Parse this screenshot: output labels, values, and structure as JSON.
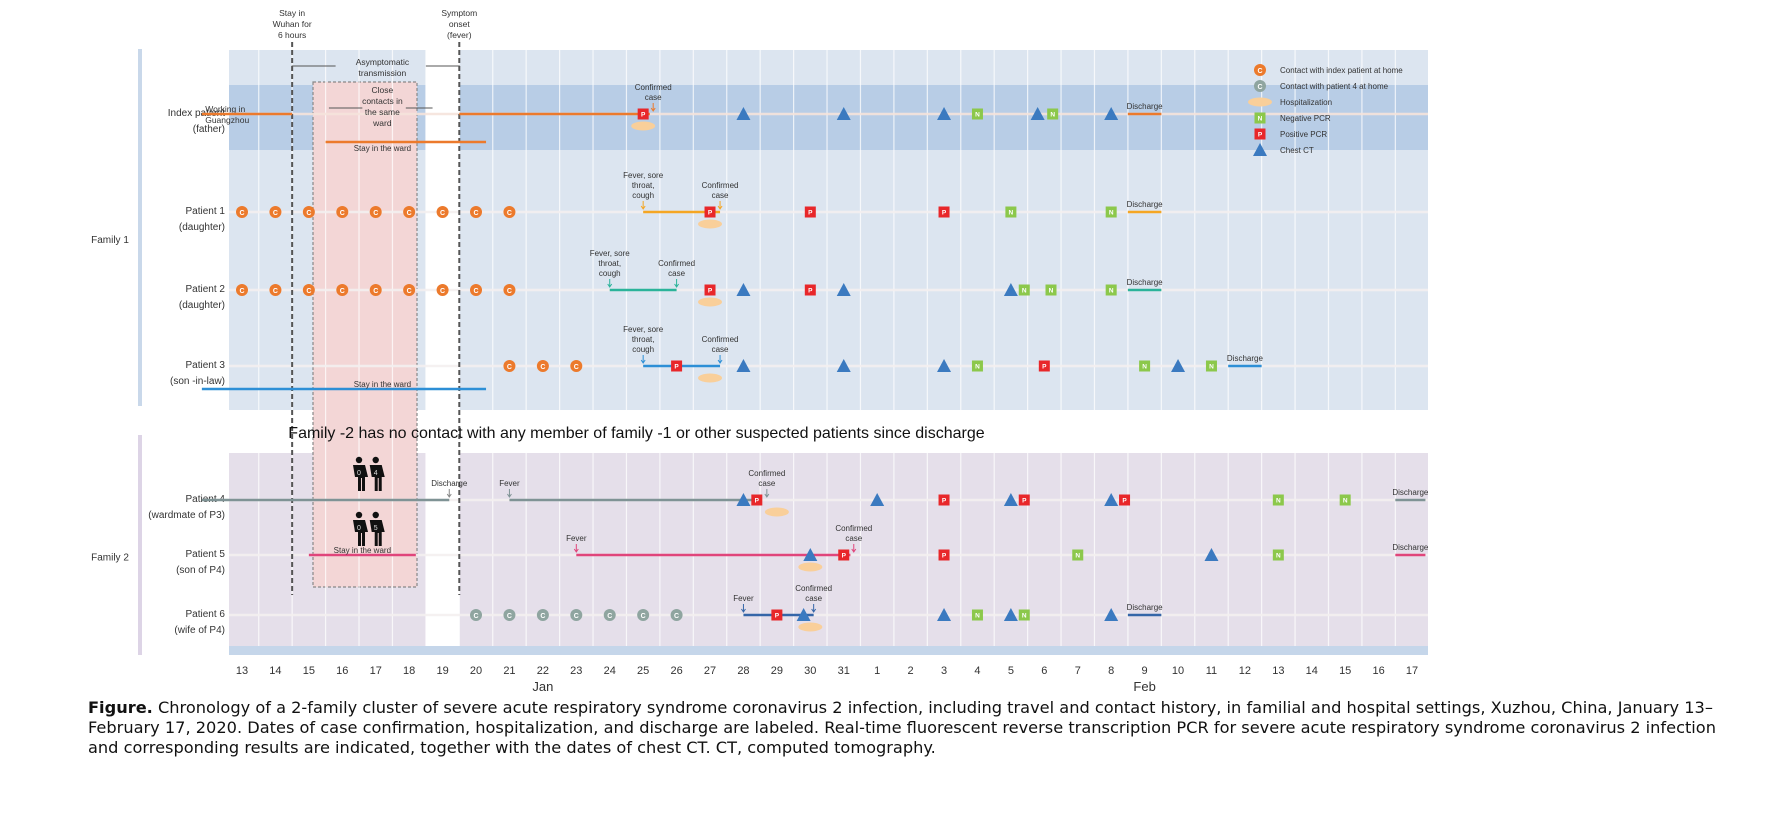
{
  "chart_data": {
    "type": "timeline",
    "title": "",
    "x_axis": {
      "ticks": [
        "13",
        "14",
        "15",
        "16",
        "17",
        "18",
        "19",
        "20",
        "21",
        "22",
        "23",
        "24",
        "25",
        "26",
        "27",
        "28",
        "29",
        "30",
        "31",
        "1",
        "2",
        "3",
        "4",
        "5",
        "6",
        "7",
        "8",
        "9",
        "10",
        "11",
        "12",
        "13",
        "14",
        "15",
        "16",
        "17"
      ],
      "month_labels": [
        {
          "label": "Jan",
          "at_tick": 9
        },
        {
          "label": "Feb",
          "at_tick": 27
        }
      ],
      "range": [
        "2020-01-13",
        "2020-02-17"
      ]
    },
    "top_annotations": [
      {
        "text": [
          "Stay in",
          "Wuhan for",
          "6 hours"
        ],
        "day": 1.5
      },
      {
        "text": [
          "Symptom",
          "onset",
          "(fever)"
        ],
        "day": 6.5
      }
    ],
    "inner_annotations": {
      "asymptomatic": [
        "Asymptomatic",
        "transmission"
      ],
      "close_contacts": [
        "Close",
        "contacts in",
        "the same",
        "ward"
      ],
      "working": [
        "Working in",
        "Guangzhou"
      ],
      "stay_ward": "Stay in the ward",
      "family2_note": "Family -2 has no contact with any member of family -1 or other suspected patients since discharge",
      "fig_labels": [
        "0",
        "4",
        "0",
        "5"
      ]
    },
    "groups": [
      {
        "label": "Family 1",
        "rows": [
          0,
          1,
          2,
          3
        ]
      },
      {
        "label": "Family 2",
        "rows": [
          4,
          5,
          6
        ]
      }
    ],
    "legend": {
      "position": "top-right",
      "items": [
        {
          "key": "contact_index",
          "label": "Contact with index patient at home",
          "glyph": "C"
        },
        {
          "key": "contact_p4",
          "label": "Contact with patient 4 at home",
          "glyph": "C"
        },
        {
          "key": "hosp",
          "label": "Hospitalization",
          "glyph": "H"
        },
        {
          "key": "neg",
          "label": "Negative PCR",
          "glyph": "N"
        },
        {
          "key": "pos",
          "label": "Positive PCR",
          "glyph": "P"
        },
        {
          "key": "ct",
          "label": "Chest CT",
          "glyph": "T"
        }
      ]
    },
    "colors": {
      "contact_index": "#ec7a2c",
      "contact_p4": "#8fa5a0",
      "hosp": "#f9cf9a",
      "neg": "#8cc84b",
      "pos": "#e8272a",
      "ct": "#3b7ac0",
      "family1_bg": "#dce5f0",
      "family1_index_bg": "#b8cde6",
      "family2_bg": "#e5dfea",
      "ward_box": "#f3d6d6",
      "axis_band": "#c5d6ea"
    },
    "rows": [
      {
        "label": [
          "Index patient",
          "(father)"
        ],
        "color": "#ec7a2c",
        "segments": [
          {
            "from": -1.2,
            "to": 1.5
          },
          {
            "from": 6.5,
            "to": 12.2
          }
        ],
        "ward_line": {
          "from": 2.5,
          "to": 7.3,
          "label": "Stay in the ward"
        },
        "events": [
          {
            "type": "pos",
            "day": 12.0
          },
          {
            "type": "hosp",
            "day": 12.0
          },
          {
            "type": "ct",
            "day": 15.0
          },
          {
            "type": "ct",
            "day": 18.0
          },
          {
            "type": "ct",
            "day": 21.0
          },
          {
            "type": "neg",
            "day": 22.0
          },
          {
            "type": "ct",
            "day": 23.8
          },
          {
            "type": "neg",
            "day": 24.25
          },
          {
            "type": "ct",
            "day": 26.0
          }
        ],
        "annotations": [
          {
            "text": [
              "Confirmed",
              "case"
            ],
            "day": 12.3
          }
        ],
        "discharge": {
          "from": 26.5,
          "to": 27.5,
          "label": "Discharge"
        }
      },
      {
        "label": [
          "Patient 1",
          "(daughter)"
        ],
        "color": "#f5a623",
        "contacts": [
          0,
          1,
          2,
          3,
          4,
          5,
          6,
          7,
          8
        ],
        "contact_type": "contact_index",
        "segments": [
          {
            "from": 12.0,
            "to": 14.3
          }
        ],
        "events": [
          {
            "type": "pos",
            "day": 14.0
          },
          {
            "type": "hosp",
            "day": 14.0
          },
          {
            "type": "pos",
            "day": 17.0
          },
          {
            "type": "pos",
            "day": 21.0
          },
          {
            "type": "neg",
            "day": 23.0
          },
          {
            "type": "neg",
            "day": 26.0
          }
        ],
        "annotations": [
          {
            "text": [
              "Fever, sore",
              "throat,",
              "cough"
            ],
            "day": 12.0
          },
          {
            "text": [
              "Confirmed",
              "case"
            ],
            "day": 14.3
          }
        ],
        "discharge": {
          "from": 26.5,
          "to": 27.5,
          "label": "Discharge"
        }
      },
      {
        "label": [
          "Patient 2",
          "(daughter)"
        ],
        "color": "#2bb39a",
        "contacts": [
          0,
          1,
          2,
          3,
          4,
          5,
          6,
          7,
          8
        ],
        "contact_type": "contact_index",
        "segments": [
          {
            "from": 11.0,
            "to": 13.0
          }
        ],
        "events": [
          {
            "type": "pos",
            "day": 14.0
          },
          {
            "type": "hosp",
            "day": 14.0
          },
          {
            "type": "ct",
            "day": 15.0
          },
          {
            "type": "pos",
            "day": 17.0
          },
          {
            "type": "ct",
            "day": 18.0
          },
          {
            "type": "ct",
            "day": 23.0
          },
          {
            "type": "neg",
            "day": 23.4
          },
          {
            "type": "neg",
            "day": 24.2
          },
          {
            "type": "neg",
            "day": 26.0
          }
        ],
        "annotations": [
          {
            "text": [
              "Fever, sore",
              "throat,",
              "cough"
            ],
            "day": 11.0
          },
          {
            "text": [
              "Confirmed",
              "case"
            ],
            "day": 13.0
          }
        ],
        "discharge": {
          "from": 26.5,
          "to": 27.5,
          "label": "Discharge"
        }
      },
      {
        "label": [
          "Patient 3",
          "(son -in-law)"
        ],
        "color": "#2d8fd6",
        "contacts": [
          8,
          9,
          10
        ],
        "contact_type": "contact_index",
        "segments": [
          {
            "from": 12.0,
            "to": 14.3
          }
        ],
        "ward_line": {
          "from": -1.2,
          "to": 7.3,
          "label": "Stay in the ward"
        },
        "events": [
          {
            "type": "pos",
            "day": 13.0
          },
          {
            "type": "hosp",
            "day": 14.0
          },
          {
            "type": "ct",
            "day": 15.0
          },
          {
            "type": "ct",
            "day": 18.0
          },
          {
            "type": "ct",
            "day": 21.0
          },
          {
            "type": "neg",
            "day": 22.0
          },
          {
            "type": "pos",
            "day": 24.0
          },
          {
            "type": "neg",
            "day": 27.0
          },
          {
            "type": "ct",
            "day": 28.0
          },
          {
            "type": "neg",
            "day": 29.0
          }
        ],
        "annotations": [
          {
            "text": [
              "Fever, sore",
              "throat,",
              "cough"
            ],
            "day": 12.0
          },
          {
            "text": [
              "Confirmed",
              "case"
            ],
            "day": 14.3
          }
        ],
        "discharge": {
          "from": 29.5,
          "to": 30.5,
          "label": "Discharge"
        }
      },
      {
        "label": [
          "Patient 4",
          "(wardmate of P3)"
        ],
        "color": "#7f9395",
        "segments": [
          {
            "from": -1.2,
            "to": 6.2
          },
          {
            "from": 8.0,
            "to": 15.5
          }
        ],
        "events": [
          {
            "type": "ct",
            "day": 15.0
          },
          {
            "type": "pos",
            "day": 15.4
          },
          {
            "type": "hosp",
            "day": 16.0
          },
          {
            "type": "ct",
            "day": 19.0
          },
          {
            "type": "pos",
            "day": 21.0
          },
          {
            "type": "ct",
            "day": 23.0
          },
          {
            "type": "pos",
            "day": 23.4
          },
          {
            "type": "ct",
            "day": 26.0
          },
          {
            "type": "pos",
            "day": 26.4
          },
          {
            "type": "neg",
            "day": 31.0
          },
          {
            "type": "neg",
            "day": 33.0
          }
        ],
        "annotations": [
          {
            "text": [
              "Discharge"
            ],
            "day": 6.2
          },
          {
            "text": [
              "Fever"
            ],
            "day": 8.0
          },
          {
            "text": [
              "Confirmed",
              "case"
            ],
            "day": 15.7
          }
        ],
        "discharge": {
          "from": 34.5,
          "to": 35.4,
          "label": "Discharge"
        }
      },
      {
        "label": [
          "Patient 5",
          "(son of P4)"
        ],
        "color": "#e0457b",
        "segments": [
          {
            "from": 10.0,
            "to": 18.2
          }
        ],
        "ward_line": {
          "from": 2.0,
          "to": 5.2,
          "label": "Stay in the ward"
        },
        "events": [
          {
            "type": "ct",
            "day": 17.0
          },
          {
            "type": "hosp",
            "day": 17.0
          },
          {
            "type": "pos",
            "day": 18.0
          },
          {
            "type": "pos",
            "day": 21.0
          },
          {
            "type": "neg",
            "day": 25.0
          },
          {
            "type": "ct",
            "day": 29.0
          },
          {
            "type": "neg",
            "day": 31.0
          }
        ],
        "annotations": [
          {
            "text": [
              "Fever"
            ],
            "day": 10.0
          },
          {
            "text": [
              "Confirmed",
              "case"
            ],
            "day": 18.3
          }
        ],
        "discharge": {
          "from": 34.5,
          "to": 35.4,
          "label": "Discharge"
        }
      },
      {
        "label": [
          "Patient 6",
          "(wife of P4)"
        ],
        "color": "#3566a8",
        "contacts": [
          7,
          8,
          9,
          10,
          11,
          12,
          13
        ],
        "contact_type": "contact_p4",
        "segments": [
          {
            "from": 15.0,
            "to": 17.1
          }
        ],
        "events": [
          {
            "type": "pos",
            "day": 16.0
          },
          {
            "type": "ct",
            "day": 16.8
          },
          {
            "type": "hosp",
            "day": 17.0
          },
          {
            "type": "ct",
            "day": 21.0
          },
          {
            "type": "neg",
            "day": 22.0
          },
          {
            "type": "ct",
            "day": 23.0
          },
          {
            "type": "neg",
            "day": 23.4
          },
          {
            "type": "ct",
            "day": 26.0
          }
        ],
        "annotations": [
          {
            "text": [
              "Fever"
            ],
            "day": 15.0
          },
          {
            "text": [
              "Confirmed",
              "case"
            ],
            "day": 17.1
          }
        ],
        "discharge": {
          "from": 26.5,
          "to": 27.5,
          "label": "Discharge"
        }
      }
    ]
  },
  "caption": {
    "prefix": "Figure.",
    "text": " Chronology of a 2-family cluster of severe acute respiratory syndrome coronavirus 2 infection, including travel and contact history, in familial and hospital settings, Xuzhou, China, January 13–February 17, 2020. Dates of case confirmation, hospitalization, and discharge are labeled. Real-time fluorescent reverse transcription PCR for severe acute respiratory syndrome coronavirus 2 infection and corresponding results are indicated, together with the dates of chest CT. CT, computed tomography."
  }
}
